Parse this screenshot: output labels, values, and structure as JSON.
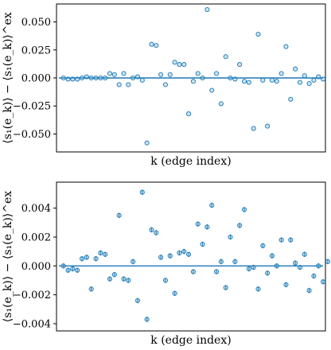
{
  "chart_data": [
    {
      "type": "scatter",
      "xlabel": "k (edge index)",
      "ylabel": "⟨s₁(e_k)⟩ − ⟨s₁(e_k)⟩^ex",
      "ylim": [
        -0.066,
        0.066
      ],
      "yticks": [
        -0.05,
        -0.025,
        0.0,
        0.025,
        0.05
      ],
      "ytick_labels": [
        "−0.050",
        "−0.025",
        "0.000",
        "0.025",
        "0.050"
      ],
      "xlim": [
        -1.5,
        56.5
      ],
      "grid": false,
      "reference_line": 0,
      "marker_color": "#5fb3e0",
      "line_color": "#1f77b4",
      "points": [
        {
          "x": 0,
          "y": 0.0
        },
        {
          "x": 1,
          "y": -0.001
        },
        {
          "x": 2,
          "y": -0.001
        },
        {
          "x": 3,
          "y": -0.001
        },
        {
          "x": 4,
          "y": 0.0
        },
        {
          "x": 5,
          "y": 0.001
        },
        {
          "x": 6,
          "y": 0.0
        },
        {
          "x": 7,
          "y": 0.0
        },
        {
          "x": 8,
          "y": 0.0
        },
        {
          "x": 9,
          "y": 0.0
        },
        {
          "x": 10,
          "y": 0.004
        },
        {
          "x": 11,
          "y": 0.003
        },
        {
          "x": 12,
          "y": -0.006
        },
        {
          "x": 13,
          "y": 0.004
        },
        {
          "x": 14,
          "y": -0.006
        },
        {
          "x": 15,
          "y": 0.0
        },
        {
          "x": 16,
          "y": 0.001
        },
        {
          "x": 17,
          "y": -0.002
        },
        {
          "x": 18,
          "y": -0.058
        },
        {
          "x": 19,
          "y": 0.03
        },
        {
          "x": 20,
          "y": 0.029
        },
        {
          "x": 21,
          "y": 0.003
        },
        {
          "x": 22,
          "y": -0.006
        },
        {
          "x": 23,
          "y": 0.003
        },
        {
          "x": 24,
          "y": 0.014
        },
        {
          "x": 25,
          "y": 0.012
        },
        {
          "x": 26,
          "y": 0.012
        },
        {
          "x": 27,
          "y": -0.032
        },
        {
          "x": 28,
          "y": -0.003
        },
        {
          "x": 29,
          "y": 0.004
        },
        {
          "x": 30,
          "y": 0.0
        },
        {
          "x": 31,
          "y": 0.061
        },
        {
          "x": 32,
          "y": -0.011
        },
        {
          "x": 33,
          "y": 0.004
        },
        {
          "x": 34,
          "y": -0.023
        },
        {
          "x": 35,
          "y": 0.019
        },
        {
          "x": 36,
          "y": 0.0
        },
        {
          "x": 37,
          "y": -0.001
        },
        {
          "x": 38,
          "y": 0.012
        },
        {
          "x": 39,
          "y": -0.003
        },
        {
          "x": 40,
          "y": -0.004
        },
        {
          "x": 41,
          "y": -0.045
        },
        {
          "x": 42,
          "y": 0.039
        },
        {
          "x": 43,
          "y": -0.002
        },
        {
          "x": 44,
          "y": -0.043
        },
        {
          "x": 45,
          "y": -0.002
        },
        {
          "x": 46,
          "y": -0.003
        },
        {
          "x": 47,
          "y": 0.004
        },
        {
          "x": 48,
          "y": 0.028
        },
        {
          "x": 49,
          "y": -0.019
        },
        {
          "x": 50,
          "y": 0.008
        },
        {
          "x": 51,
          "y": -0.004
        },
        {
          "x": 52,
          "y": 0.002
        },
        {
          "x": 53,
          "y": -0.005
        },
        {
          "x": 54,
          "y": -0.002
        },
        {
          "x": 55,
          "y": 0.001
        },
        {
          "x": 56,
          "y": -0.001
        }
      ]
    },
    {
      "type": "scatter",
      "xlabel": "k (edge index)",
      "ylabel": "⟨s₁(e_k)⟩ − ⟨s₁(e_k)⟩^ex",
      "ylim": [
        -0.0045,
        0.0058
      ],
      "yticks": [
        -0.004,
        -0.002,
        0.0,
        0.002,
        0.004
      ],
      "ytick_labels": [
        "−0.004",
        "−0.002",
        "0.000",
        "0.002",
        "0.004"
      ],
      "xlim": [
        -1.5,
        56.5
      ],
      "grid": false,
      "reference_line": 0,
      "marker_color": "#5fb3e0",
      "line_color": "#1f77b4",
      "error_bar": 0.00018,
      "points": [
        {
          "x": 0,
          "y": 0.0
        },
        {
          "x": 1,
          "y": -0.0003
        },
        {
          "x": 2,
          "y": -0.0002
        },
        {
          "x": 3,
          "y": -0.0003
        },
        {
          "x": 4,
          "y": 0.0005
        },
        {
          "x": 5,
          "y": 0.0006
        },
        {
          "x": 6,
          "y": -0.0016
        },
        {
          "x": 7,
          "y": 0.0005
        },
        {
          "x": 8,
          "y": 0.0009
        },
        {
          "x": 9,
          "y": 0.0008
        },
        {
          "x": 10,
          "y": -0.0009
        },
        {
          "x": 11,
          "y": -0.0006
        },
        {
          "x": 12,
          "y": 0.0035
        },
        {
          "x": 13,
          "y": -0.0009
        },
        {
          "x": 14,
          "y": -0.001
        },
        {
          "x": 15,
          "y": 0.0003
        },
        {
          "x": 16,
          "y": -0.0024
        },
        {
          "x": 17,
          "y": 0.0051
        },
        {
          "x": 18,
          "y": -0.0037
        },
        {
          "x": 19,
          "y": 0.0025
        },
        {
          "x": 20,
          "y": 0.0023
        },
        {
          "x": 21,
          "y": 0.0006
        },
        {
          "x": 22,
          "y": -0.001
        },
        {
          "x": 23,
          "y": 0.0007
        },
        {
          "x": 24,
          "y": -0.0019
        },
        {
          "x": 25,
          "y": 0.0009
        },
        {
          "x": 26,
          "y": 0.001
        },
        {
          "x": 27,
          "y": 0.0008
        },
        {
          "x": 28,
          "y": -0.0004
        },
        {
          "x": 29,
          "y": 0.0029
        },
        {
          "x": 30,
          "y": 0.0015
        },
        {
          "x": 31,
          "y": 0.0027
        },
        {
          "x": 32,
          "y": 0.0042
        },
        {
          "x": 33,
          "y": -0.0004
        },
        {
          "x": 34,
          "y": 0.0003
        },
        {
          "x": 35,
          "y": -0.0015
        },
        {
          "x": 36,
          "y": 0.002
        },
        {
          "x": 37,
          "y": 0.0003
        },
        {
          "x": 38,
          "y": 0.0028
        },
        {
          "x": 39,
          "y": 0.0039
        },
        {
          "x": 40,
          "y": -0.0002
        },
        {
          "x": 41,
          "y": -0.0001
        },
        {
          "x": 42,
          "y": -0.0016
        },
        {
          "x": 43,
          "y": 0.0014
        },
        {
          "x": 44,
          "y": -0.0005
        },
        {
          "x": 45,
          "y": 0.0007
        },
        {
          "x": 46,
          "y": 0.0
        },
        {
          "x": 47,
          "y": 0.0018
        },
        {
          "x": 48,
          "y": -0.0013
        },
        {
          "x": 49,
          "y": 0.0018
        },
        {
          "x": 50,
          "y": 0.0002
        },
        {
          "x": 51,
          "y": -0.0001
        },
        {
          "x": 52,
          "y": 0.0008
        },
        {
          "x": 53,
          "y": -0.0017
        },
        {
          "x": 54,
          "y": -0.0007
        },
        {
          "x": 55,
          "y": 0.0
        },
        {
          "x": 56,
          "y": -0.0011
        },
        {
          "x": 57,
          "y": 0.0003
        }
      ]
    }
  ]
}
